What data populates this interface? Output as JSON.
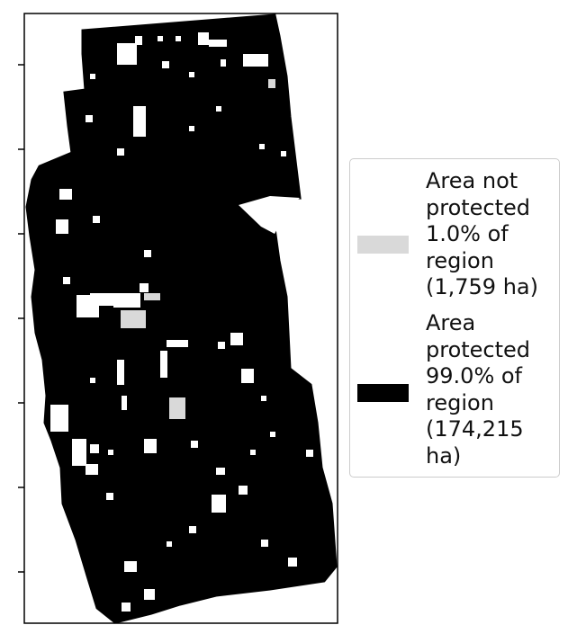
{
  "map": {
    "colors": {
      "protected": "#000000",
      "not_protected": "#d9d9d9",
      "background": "#ffffff",
      "axes": "#000000"
    },
    "y_ticks_count": 7
  },
  "legend": {
    "items": [
      {
        "key": "not_protected",
        "color": "#d9d9d9",
        "lines": [
          "Area not",
          "protected",
          "1.0% of",
          "region",
          "(1,759 ha)"
        ]
      },
      {
        "key": "protected",
        "color": "#000000",
        "lines": [
          "Area",
          "protected",
          "99.0% of",
          "region",
          "(174,215",
          "ha)"
        ]
      }
    ]
  }
}
